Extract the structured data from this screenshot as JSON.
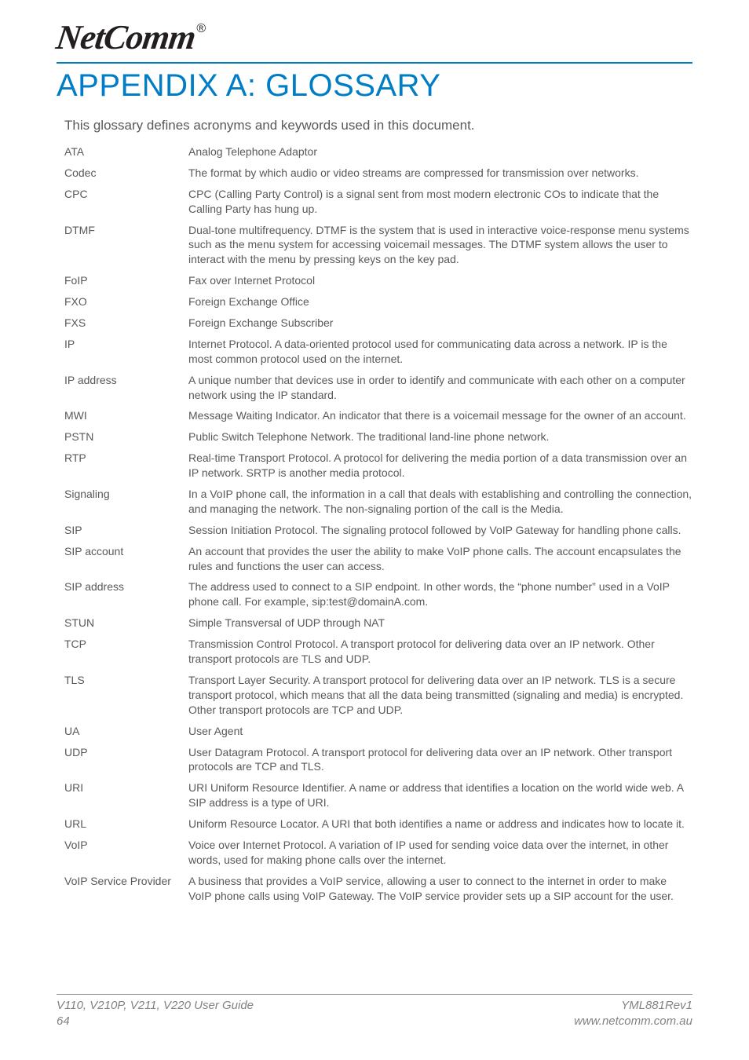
{
  "brand": {
    "name": "NetComm",
    "reg": "®"
  },
  "title": "APPENDIX A: GLOSSARY",
  "intro": "This glossary defines acronyms and keywords used in this document.",
  "colors": {
    "accent": "#007dc5",
    "body_text": "#58595b",
    "logo": "#231f20",
    "footer_text": "#808285",
    "footer_rule": "#9d9fa2",
    "background": "#ffffff"
  },
  "glossary": [
    {
      "term": "ATA",
      "def": "Analog Telephone Adaptor"
    },
    {
      "term": "Codec",
      "def": "The format by which audio or video streams are compressed for transmission over networks."
    },
    {
      "term": "CPC",
      "def": "CPC (Calling Party Control) is a signal sent from most modern electronic COs to indicate that the Calling Party has hung up."
    },
    {
      "term": "DTMF",
      "def": "Dual-tone multifrequency. DTMF is the system that is used in interactive voice-response menu systems such as the menu system for accessing voicemail messages. The DTMF system allows the user to interact with the menu by pressing keys on the key pad."
    },
    {
      "term": "FoIP",
      "def": "Fax over Internet Protocol"
    },
    {
      "term": "FXO",
      "def": "Foreign Exchange Office"
    },
    {
      "term": "FXS",
      "def": "Foreign Exchange Subscriber"
    },
    {
      "term": "IP",
      "def": "Internet Protocol. A data-oriented protocol used for communicating data across a network. IP is the most common protocol used on the internet."
    },
    {
      "term": "IP address",
      "def": "A unique number that devices use in order to identify and communicate with each other on a computer network using the IP standard."
    },
    {
      "term": "MWI",
      "def": "Message Waiting Indicator. An indicator that there is a voicemail message for the owner of an account."
    },
    {
      "term": "PSTN",
      "def": "Public Switch Telephone Network. The traditional land-line phone network."
    },
    {
      "term": "RTP",
      "def": "Real-time Transport Protocol. A protocol for delivering the media portion of a data transmission over an IP network. SRTP is another media protocol."
    },
    {
      "term": "Signaling",
      "def": "In a VoIP phone call, the information in a call that deals with establishing and controlling the connection, and managing the network. The non-signaling portion of the call is the Media."
    },
    {
      "term": "SIP",
      "def": "Session Initiation Protocol. The signaling protocol followed by VoIP Gateway for handling phone calls."
    },
    {
      "term": "SIP account",
      "def": "An account that provides the user the ability to make VoIP phone calls. The account encapsulates the rules and functions the user can access."
    },
    {
      "term": "SIP address",
      "def": "The address used to connect to a SIP endpoint. In other words, the “phone number” used in a VoIP phone call. For example, sip:test@domainA.com."
    },
    {
      "term": "STUN",
      "def": "Simple Transversal of UDP through NAT"
    },
    {
      "term": "TCP",
      "def": "Transmission Control Protocol. A transport protocol for delivering data over an IP network. Other transport protocols are TLS and UDP."
    },
    {
      "term": "TLS",
      "def": "Transport Layer Security. A transport protocol for delivering data over an IP network. TLS is a secure transport protocol, which means that all the data being transmitted (signaling and media) is encrypted. Other transport protocols are TCP and UDP."
    },
    {
      "term": "UA",
      "def": "User Agent"
    },
    {
      "term": "UDP",
      "def": "User Datagram Protocol. A transport protocol for delivering data over an IP network. Other transport protocols are TCP and TLS."
    },
    {
      "term": "URI",
      "def": "URI Uniform Resource Identifier. A name or address that identifies a location on the world wide web. A SIP address is a type of URI."
    },
    {
      "term": "URL",
      "def": "Uniform Resource Locator. A URI that both identifies a name or address and indicates how to locate it."
    },
    {
      "term": "VoIP",
      "def": "Voice over Internet Protocol. A variation of IP used for sending voice data over the internet, in other words, used for making phone calls over the internet."
    },
    {
      "term": "VoIP Service Provider",
      "def": "A business that provides a VoIP service, allowing a user to connect to the internet in order to make VoIP phone calls using VoIP Gateway. The VoIP service provider sets up a SIP account for the user."
    }
  ],
  "footer": {
    "left_line1": "V110, V210P, V211, V220 User Guide",
    "left_line2": "64",
    "right_line1": "YML881Rev1",
    "right_line2": "www.netcomm.com.au"
  }
}
